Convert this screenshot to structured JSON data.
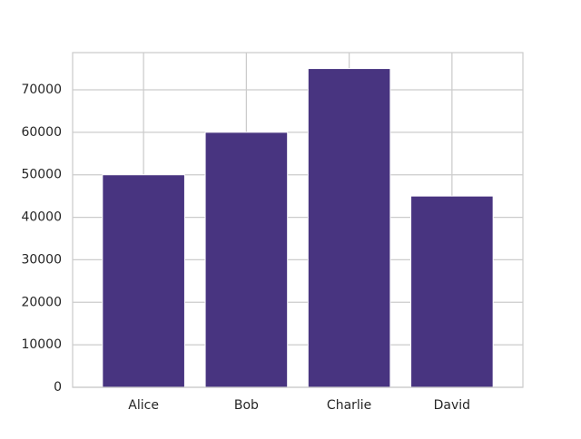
{
  "chart_data": {
    "type": "bar",
    "categories": [
      "Alice",
      "Bob",
      "Charlie",
      "David"
    ],
    "values": [
      50000,
      60000,
      75000,
      45000
    ],
    "title": "",
    "xlabel": "",
    "ylabel": "",
    "ylim": [
      0,
      78750
    ],
    "yticks": [
      0,
      10000,
      20000,
      30000,
      40000,
      50000,
      60000,
      70000
    ],
    "grid": true,
    "bar_color": "#483480",
    "grid_color": "#cccccc",
    "axis_color": "#cccccc"
  }
}
